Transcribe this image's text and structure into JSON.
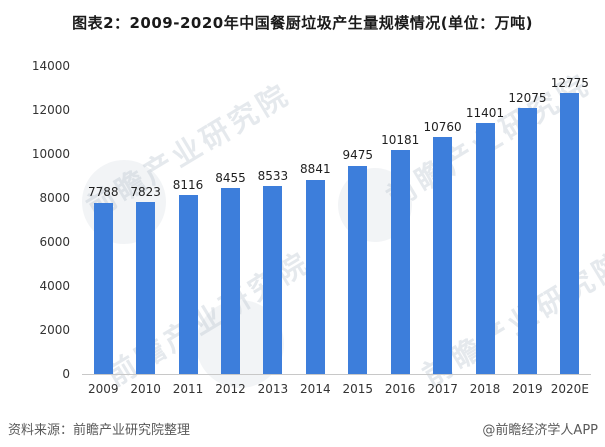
{
  "title": "图表2：2009-2020年中国餐厨垃圾产生量规模情况(单位：万吨)",
  "chart_data": {
    "type": "bar",
    "title": "图表2：2009-2020年中国餐厨垃圾产生量规模情况(单位：万吨)",
    "categories": [
      "2009",
      "2010",
      "2011",
      "2012",
      "2013",
      "2014",
      "2015",
      "2016",
      "2017",
      "2018",
      "2019",
      "2020E"
    ],
    "values": [
      7788,
      7823,
      8116,
      8455,
      8533,
      8841,
      9475,
      10181,
      10760,
      11401,
      12075,
      12775
    ],
    "xlabel": "",
    "ylabel": "",
    "ylim": [
      0,
      14000
    ],
    "yticks": [
      0,
      2000,
      4000,
      6000,
      8000,
      10000,
      12000,
      14000
    ],
    "grid": false,
    "legend": "none",
    "bar_color": "#3d7edb",
    "data_labels": true
  },
  "watermark": {
    "text": "前瞻产业研究院"
  },
  "footer": {
    "source": "资料来源：前瞻产业研究院整理",
    "credit": "@前瞻经济学人APP"
  },
  "colors": {
    "bar": "#3d7edb",
    "title_text": "#1a1a1a",
    "axis_text": "#333333",
    "axis_line": "#c8c8c8",
    "footer_text": "#595959",
    "background": "#ffffff"
  }
}
